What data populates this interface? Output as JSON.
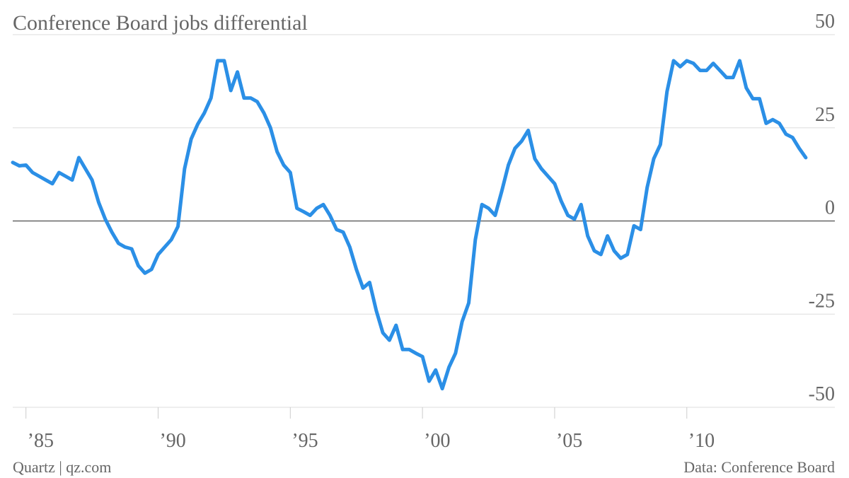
{
  "chart_data": {
    "type": "line",
    "title": "Conference Board jobs differential",
    "credit": "Quartz | qz.com",
    "source": "Data: Conference Board",
    "xlim": [
      1984.5,
      2015.6
    ],
    "xticks": [
      {
        "value": 1985,
        "label": "’85"
      },
      {
        "value": 1990,
        "label": "’90"
      },
      {
        "value": 1995,
        "label": "’95"
      },
      {
        "value": 2000,
        "label": "’00"
      },
      {
        "value": 2005,
        "label": "’05"
      },
      {
        "value": 2010,
        "label": "’10"
      }
    ],
    "ylim": [
      -50,
      50
    ],
    "yticks": [
      -50,
      -25,
      0,
      25,
      50
    ],
    "grid": true,
    "x": [
      1984.5,
      1984.75,
      1985,
      1985.25,
      1985.5,
      1985.75,
      1986,
      1986.25,
      1986.5,
      1986.75,
      1987,
      1987.25,
      1987.5,
      1987.75,
      1988,
      1988.25,
      1988.5,
      1988.75,
      1989,
      1989.25,
      1989.5,
      1989.75,
      1990,
      1990.25,
      1990.5,
      1990.75,
      1991,
      1991.25,
      1991.5,
      1991.75,
      1992,
      1992.25,
      1992.5,
      1992.75,
      1993,
      1993.25,
      1993.5,
      1993.75,
      1994,
      1994.25,
      1994.5,
      1994.75,
      1995,
      1995.25,
      1995.5,
      1995.75,
      1996,
      1996.25,
      1996.5,
      1996.75,
      1997,
      1997.25,
      1997.5,
      1997.75,
      1998,
      1998.25,
      1998.5,
      1998.75,
      1999,
      1999.25,
      1999.5,
      1999.75,
      2000,
      2000.25,
      2000.5,
      2000.75,
      2001,
      2001.25,
      2001.5,
      2001.75,
      2002,
      2002.25,
      2002.5,
      2002.75,
      2003,
      2003.25,
      2003.5,
      2003.75,
      2004,
      2004.25,
      2004.5,
      2004.75,
      2005,
      2005.25,
      2005.5,
      2005.75,
      2006,
      2006.25,
      2006.5,
      2006.75,
      2007,
      2007.25,
      2007.5,
      2007.75,
      2008,
      2008.25,
      2008.5,
      2008.75,
      2009,
      2009.25,
      2009.5,
      2009.75,
      2010,
      2010.25,
      2010.5,
      2010.75,
      2011,
      2011.25,
      2011.5,
      2011.75,
      2012,
      2012.25,
      2012.5,
      2012.75,
      2013,
      2013.25,
      2013.5,
      2013.75,
      2014,
      2014.25,
      2014.5
    ],
    "series": [
      {
        "color": "#2b8fe6",
        "values": [
          15.7,
          14.8,
          15,
          13,
          12,
          11,
          10,
          13,
          12,
          11,
          17,
          14,
          11,
          5,
          0.5,
          -3,
          -6,
          -7,
          -7.5,
          -12,
          -14,
          -13,
          -9,
          -7,
          -5,
          -1.5,
          14,
          22,
          26,
          29,
          33,
          43,
          43,
          35,
          40,
          33,
          33,
          32,
          29,
          25,
          18.6,
          15,
          13,
          3.4,
          2.5,
          1.5,
          3.4,
          4.4,
          1.5,
          -2.3,
          -3,
          -7,
          -13,
          -18,
          -16.5,
          -24,
          -30,
          -32,
          -28,
          -34.5,
          -34.5,
          -35.5,
          -36.4,
          -43,
          -40,
          -45,
          -39.3,
          -35.5,
          -27,
          -22,
          -5,
          4.4,
          3.4,
          1.5,
          8,
          15,
          19.5,
          21.4,
          24.3,
          16.7,
          14,
          12,
          10,
          5.3,
          1.5,
          0.5,
          4.4,
          -4,
          -8,
          -9,
          -4,
          -8,
          -10,
          -9,
          -1.3,
          -2.3,
          9,
          16.7,
          20.5,
          34.7,
          43,
          41.4,
          43,
          42.3,
          40.4,
          40.4,
          42.3,
          40.4,
          38.5,
          38.5,
          43,
          35.7,
          32.8,
          32.8,
          26.2,
          27.2,
          26.2,
          23.3,
          22.4,
          19.5,
          17
        ]
      }
    ]
  }
}
